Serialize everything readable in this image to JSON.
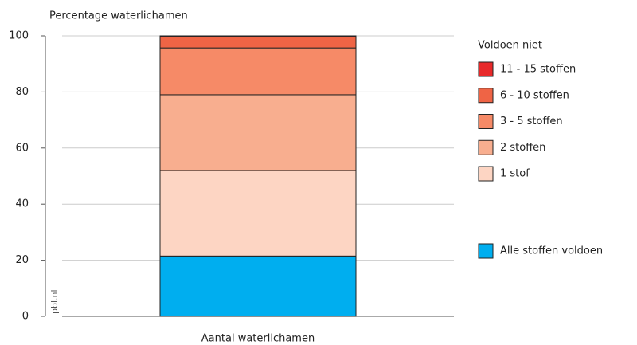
{
  "chart_data": {
    "type": "stacked_bar",
    "y_label": "Percentage waterlichamen",
    "categories": [
      "Aantal waterlichamen"
    ],
    "legend_title": "Voldoen niet",
    "source": "pbl.nl",
    "series": [
      {
        "name": "Alle stoffen voldoen",
        "color": "#00aeef",
        "values": [
          21.5
        ]
      },
      {
        "name": "1 stof",
        "color": "#fdd5c3",
        "values": [
          30.5
        ]
      },
      {
        "name": "2 stoffen",
        "color": "#f8ae8f",
        "values": [
          27
        ]
      },
      {
        "name": "3 - 5 stoffen",
        "color": "#f68a67",
        "values": [
          16.7
        ]
      },
      {
        "name": "6 - 10 stoffen",
        "color": "#ef6445",
        "values": [
          4
        ]
      },
      {
        "name": "11 - 15 stoffen",
        "color": "#e8292a",
        "values": [
          0.3
        ]
      }
    ],
    "ylim": [
      0,
      100
    ],
    "yticks": [
      0,
      20,
      40,
      60,
      80,
      100
    ],
    "grid": true
  }
}
